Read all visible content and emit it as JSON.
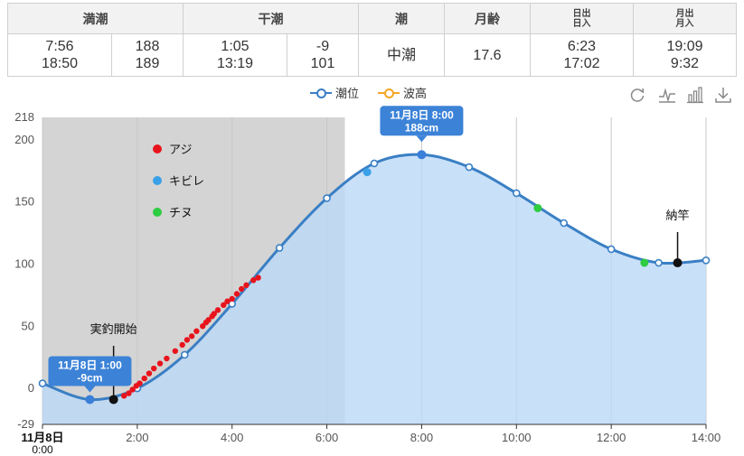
{
  "table": {
    "headers": {
      "high": "満潮",
      "low": "干潮",
      "tide": "潮",
      "moon_age": "月齢",
      "sun_top": "日出",
      "sun_bottom": "日入",
      "moon_top": "月出",
      "moon_bottom": "月入"
    },
    "high_times": [
      "7:56",
      "18:50"
    ],
    "high_heights": [
      "188",
      "189"
    ],
    "low_times": [
      "1:05",
      "13:19"
    ],
    "low_heights": [
      "-9",
      "101"
    ],
    "tide_name": "中潮",
    "moon_age": "17.6",
    "sun_times": [
      "6:23",
      "17:02"
    ],
    "moon_times": [
      "19:09",
      "9:32"
    ]
  },
  "legend": {
    "tide_level": "潮位",
    "wave_height": "波高",
    "tide_color": "#3a7fc4",
    "wave_color": "#f5a623"
  },
  "toolbar": [
    "refresh-icon",
    "line-chart-icon",
    "bar-chart-icon",
    "download-icon"
  ],
  "chart_data": {
    "type": "area",
    "x_unit": "hour",
    "x": [
      0,
      1,
      2,
      3,
      4,
      5,
      6,
      7,
      8,
      9,
      10,
      11,
      12,
      13,
      14
    ],
    "y": [
      4,
      -9,
      0,
      27,
      68,
      113,
      153,
      181,
      188,
      178,
      157,
      133,
      112,
      101,
      103
    ],
    "x_ticks": [
      {
        "value": 0,
        "label": "11月8日",
        "sublabel": "0:00"
      },
      {
        "value": 2,
        "label": "2:00"
      },
      {
        "value": 4,
        "label": "4:00"
      },
      {
        "value": 6,
        "label": "6:00"
      },
      {
        "value": 8,
        "label": "8:00"
      },
      {
        "value": 10,
        "label": "10:00"
      },
      {
        "value": 12,
        "label": "12:00"
      },
      {
        "value": 14,
        "label": "14:00"
      }
    ],
    "y_ticks": [
      -29,
      0,
      50,
      100,
      150,
      200,
      218
    ],
    "ylim": [
      -29,
      218
    ],
    "xlim": [
      0,
      14
    ],
    "shaded_region": [
      0,
      6.38
    ],
    "fishing_span": [
      1.5,
      13.4
    ],
    "series_colors": {
      "line": "#3a7fc4",
      "area": "#bcd8f8",
      "shade": "#d4d4d4"
    },
    "catches": [
      {
        "name": "アジ",
        "color": "#e8141c",
        "points": [
          [
            1.72,
            -6
          ],
          [
            1.82,
            -4
          ],
          [
            1.9,
            -1
          ],
          [
            1.98,
            2
          ],
          [
            2.05,
            4
          ],
          [
            2.15,
            8
          ],
          [
            2.25,
            12
          ],
          [
            2.35,
            16
          ],
          [
            2.48,
            20
          ],
          [
            2.62,
            24
          ],
          [
            2.8,
            30
          ],
          [
            2.95,
            35
          ],
          [
            3.05,
            39
          ],
          [
            3.15,
            42
          ],
          [
            3.25,
            46
          ],
          [
            3.38,
            50
          ],
          [
            3.45,
            53
          ],
          [
            3.5,
            55
          ],
          [
            3.58,
            58
          ],
          [
            3.62,
            60
          ],
          [
            3.7,
            63
          ],
          [
            3.82,
            67
          ],
          [
            3.9,
            70
          ],
          [
            4.0,
            72
          ],
          [
            4.1,
            76
          ],
          [
            4.2,
            80
          ],
          [
            4.3,
            83
          ],
          [
            4.45,
            87
          ],
          [
            4.55,
            89
          ]
        ]
      },
      {
        "name": "キビレ",
        "color": "#3aa0e8",
        "points": [
          [
            6.85,
            174
          ]
        ]
      },
      {
        "name": "チヌ",
        "color": "#2ecc40",
        "points": [
          [
            10.45,
            145
          ],
          [
            12.7,
            101
          ]
        ]
      }
    ],
    "tooltips": [
      {
        "label": "11月8日 1:00",
        "value": "-9cm",
        "x": 1,
        "y": -9
      },
      {
        "label": "11月8日 8:00",
        "value": "188cm",
        "x": 8,
        "y": 188
      }
    ],
    "annotations": [
      {
        "text": "実釣開始",
        "x": 1.5,
        "y": -9
      },
      {
        "text": "納竿",
        "x": 13.4,
        "y": 101
      }
    ]
  }
}
